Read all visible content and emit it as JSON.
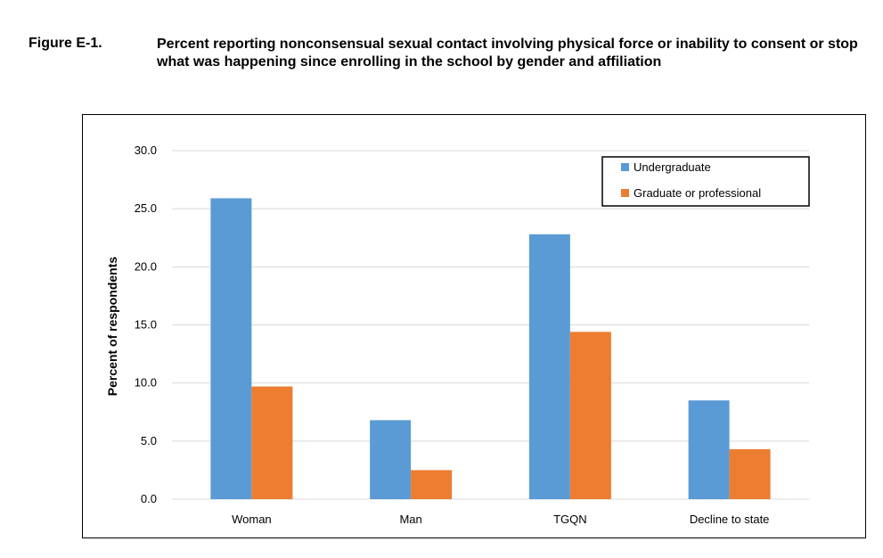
{
  "figure": {
    "label": "Figure E-1.",
    "title": "Percent reporting nonconsensual sexual contact involving physical force or inability to consent or stop what was happening since enrolling in the school by gender and affiliation"
  },
  "chart_data": {
    "type": "bar",
    "categories": [
      "Woman",
      "Man",
      "TGQN",
      "Decline to state"
    ],
    "series": [
      {
        "name": "Undergraduate",
        "color": "#5B9BD5",
        "values": [
          25.9,
          6.8,
          22.8,
          8.5
        ]
      },
      {
        "name": "Graduate or professional",
        "color": "#ED7D31",
        "values": [
          9.7,
          2.5,
          14.4,
          4.3
        ]
      }
    ],
    "ylabel": "Percent of respondents",
    "xlabel": "",
    "ylim": [
      0,
      30
    ],
    "yticks": [
      "0.0",
      "5.0",
      "10.0",
      "15.0",
      "20.0",
      "25.0",
      "30.0"
    ],
    "grid": true,
    "legend_position": "top-right"
  }
}
